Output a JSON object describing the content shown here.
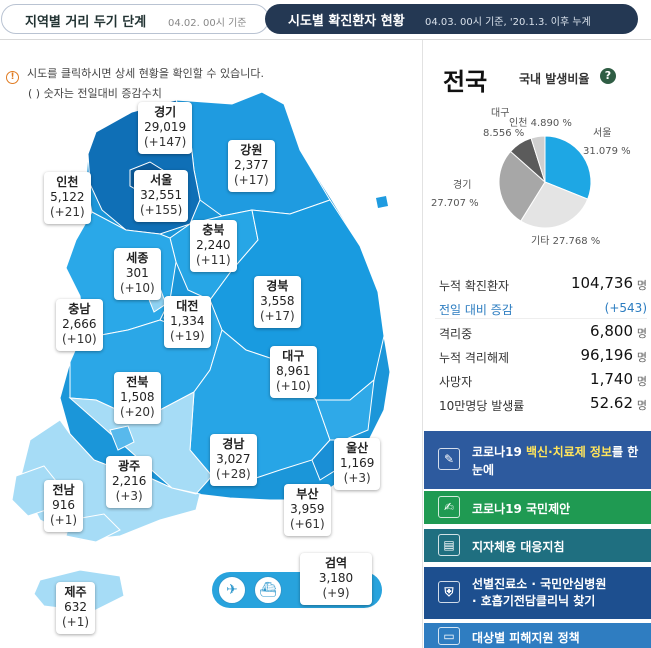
{
  "tabs": {
    "level": {
      "label": "지역별 거리 두기 단계",
      "date": "04.02. 00시 기준"
    },
    "city": {
      "label": "시도별 확진환자 현황",
      "date": "04.03. 00시 기준, '20.1.3. 이후 누계"
    }
  },
  "notes": {
    "line1": "시도를 클릭하시면 상세 현황을 확인할 수 있습니다.",
    "line2": "( ) 숫자는 전일대비 증감수치"
  },
  "regions": [
    {
      "id": "gyeonggi",
      "name": "경기",
      "cases": "29,019",
      "delta": "(+147)"
    },
    {
      "id": "gangwon",
      "name": "강원",
      "cases": "2,377",
      "delta": "(+17)"
    },
    {
      "id": "incheon",
      "name": "인천",
      "cases": "5,122",
      "delta": "(+21)"
    },
    {
      "id": "seoul",
      "name": "서울",
      "cases": "32,551",
      "delta": "(+155)"
    },
    {
      "id": "chungbuk",
      "name": "충북",
      "cases": "2,240",
      "delta": "(+11)"
    },
    {
      "id": "sejong",
      "name": "세종",
      "cases": "301",
      "delta": "(+10)"
    },
    {
      "id": "chungnam",
      "name": "충남",
      "cases": "2,666",
      "delta": "(+10)"
    },
    {
      "id": "daejeon",
      "name": "대전",
      "cases": "1,334",
      "delta": "(+19)"
    },
    {
      "id": "gyeongbuk",
      "name": "경북",
      "cases": "3,558",
      "delta": "(+17)"
    },
    {
      "id": "daegu",
      "name": "대구",
      "cases": "8,961",
      "delta": "(+10)"
    },
    {
      "id": "jeonbuk",
      "name": "전북",
      "cases": "1,508",
      "delta": "(+20)"
    },
    {
      "id": "gyeongnam",
      "name": "경남",
      "cases": "3,027",
      "delta": "(+28)"
    },
    {
      "id": "ulsan",
      "name": "울산",
      "cases": "1,169",
      "delta": "(+3)"
    },
    {
      "id": "gwangju",
      "name": "광주",
      "cases": "2,216",
      "delta": "(+3)"
    },
    {
      "id": "jeonnam",
      "name": "전남",
      "cases": "916",
      "delta": "(+1)"
    },
    {
      "id": "busan",
      "name": "부산",
      "cases": "3,959",
      "delta": "(+61)"
    },
    {
      "id": "jeju",
      "name": "제주",
      "cases": "632",
      "delta": "(+1)"
    }
  ],
  "quarantine": {
    "name": "검역",
    "cases": "3,180",
    "delta": "(+9)"
  },
  "transport_icons": [
    "airplane-icon",
    "ship-icon"
  ],
  "nation": {
    "title": "전국",
    "ratio_label": "국내 발생비율",
    "help": "?"
  },
  "pie_labels": {
    "daegu": "대구",
    "incheon": "인천 4.890 %",
    "daegu_value": "8.556 %",
    "seoul": "서울",
    "seoul_value": "31.079 %",
    "gyeonggi": "경기",
    "gyeonggi_value": "27.707 %",
    "other": "기타 27.768 %"
  },
  "chart_data": {
    "type": "pie",
    "categories": [
      "서울",
      "기타",
      "경기",
      "대구",
      "인천"
    ],
    "values": [
      31.079,
      27.768,
      27.707,
      8.556,
      4.89
    ],
    "colors": [
      "#1ea7e4",
      "#e4e4e4",
      "#a7a7a7",
      "#5b5b5b",
      "#cfcfcf"
    ]
  },
  "stats": [
    {
      "label": "누적 확진환자",
      "value": "104,736",
      "unit": "명"
    },
    {
      "label": "전일 대비 증감",
      "value": "(+543)",
      "unit": ""
    },
    {
      "label": "격리중",
      "value": "6,800",
      "unit": "명"
    },
    {
      "label": "누적 격리해제",
      "value": "96,196",
      "unit": "명"
    },
    {
      "label": "사망자",
      "value": "1,740",
      "unit": "명"
    },
    {
      "label": "10만명당 발생률",
      "value": "52.62",
      "unit": "명"
    }
  ],
  "buttons": {
    "vaccine": {
      "pre": "코로나19 ",
      "hl": "백신·치료제 정보",
      "post": "를 한눈에"
    },
    "proposal": "코로나19 국민제안",
    "guideline": "지자체용 대응지침",
    "clinic_line1": "선별진료소 · 국민안심병원",
    "clinic_line2": "· 호흡기전담클리닉 찾기",
    "support": "대상별 피해지원 정책"
  }
}
